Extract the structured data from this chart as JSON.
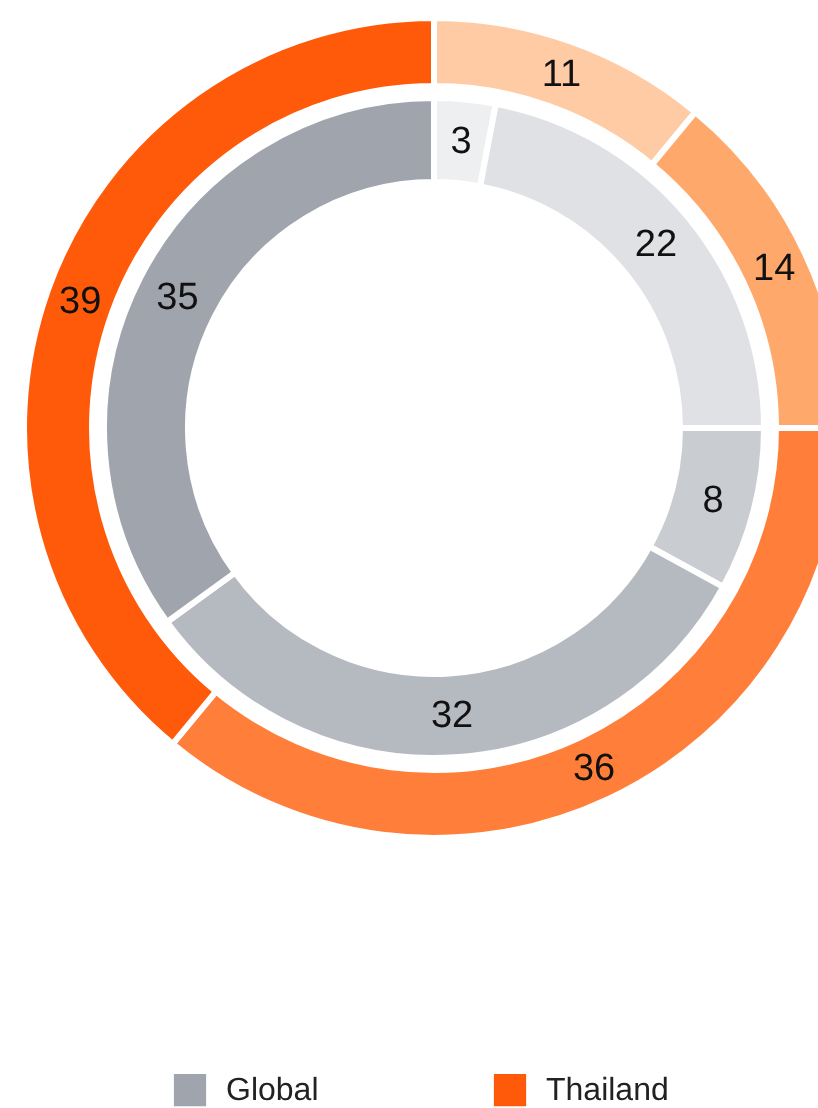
{
  "chart_data": {
    "type": "donut",
    "data_labels": true,
    "legend": "bottom",
    "series": [
      {
        "name": "Global",
        "color": "#a0a4ad",
        "values": [
          3,
          22,
          8,
          32,
          35
        ],
        "colors": [
          "#eeeff0",
          "#dfe1e4",
          "#c9ccd1",
          "#b5b9c0",
          "#a0a4ad"
        ]
      },
      {
        "name": "Thailand",
        "color": "#ff5a0a",
        "values": [
          11,
          14,
          36,
          39
        ],
        "colors": [
          "#ffcba4",
          "#ffa86b",
          "#ff7f3a",
          "#ff5a0a"
        ]
      }
    ]
  }
}
